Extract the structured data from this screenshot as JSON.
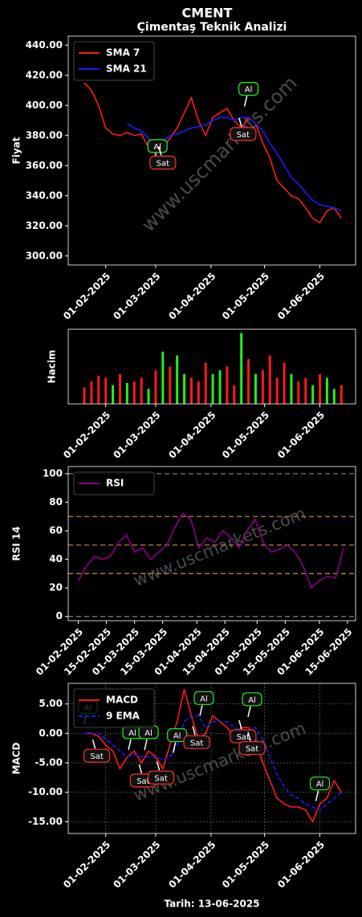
{
  "suptitle": "CMENT",
  "footer": "Tarih: 13-06-2025",
  "watermark": "www.uscmarkets.com",
  "chart_data": [
    {
      "type": "line",
      "title": "Çimentaş Teknik Analizi",
      "ylabel": "Fiyat",
      "legend": "upper left",
      "x": [
        "20-01-2025",
        "24-01-2025",
        "28-01-2025",
        "01-02-2025",
        "05-02-2025",
        "09-02-2025",
        "13-02-2025",
        "17-02-2025",
        "21-02-2025",
        "25-02-2025",
        "01-03-2025",
        "05-03-2025",
        "09-03-2025",
        "13-03-2025",
        "17-03-2025",
        "21-03-2025",
        "25-03-2025",
        "29-03-2025",
        "02-04-2025",
        "06-04-2025",
        "10-04-2025",
        "14-04-2025",
        "18-04-2025",
        "22-04-2025",
        "26-04-2025",
        "30-04-2025",
        "04-05-2025",
        "08-05-2025",
        "12-05-2025",
        "16-05-2025",
        "20-05-2025",
        "24-05-2025",
        "28-05-2025",
        "01-06-2025",
        "05-06-2025",
        "09-06-2025",
        "13-06-2025"
      ],
      "series": [
        {
          "name": "SMA 7",
          "color": "#ff1a1a",
          "values": [
            415,
            410,
            400,
            385,
            381,
            380,
            382,
            380,
            381,
            372,
            368,
            372,
            378,
            385,
            395,
            405,
            390,
            380,
            392,
            395,
            398,
            390,
            385,
            392,
            388,
            375,
            365,
            350,
            345,
            340,
            338,
            332,
            325,
            322,
            330,
            332,
            325
          ]
        },
        {
          "name": "SMA 21",
          "color": "#1a1aff",
          "values": [
            null,
            null,
            null,
            null,
            null,
            null,
            388,
            385,
            383,
            378,
            375,
            376,
            380,
            381,
            383,
            385,
            386,
            387,
            390,
            392,
            392,
            390,
            392,
            392,
            388,
            383,
            375,
            368,
            360,
            352,
            348,
            342,
            337,
            334,
            333,
            332,
            330
          ]
        }
      ],
      "xlim": [
        "11-01-2025",
        "21-06-2025"
      ],
      "xticks": [
        "01-02-2025",
        "01-03-2025",
        "01-04-2025",
        "01-05-2025",
        "01-06-2025"
      ],
      "ylim": [
        294,
        446
      ],
      "yticks": [
        {
          "value": 300,
          "label": "300.00"
        },
        {
          "value": 320,
          "label": "320.00"
        },
        {
          "value": 340,
          "label": "340.00"
        },
        {
          "value": 360,
          "label": "360.00"
        },
        {
          "value": 380,
          "label": "380.00"
        },
        {
          "value": 400,
          "label": "400.00"
        },
        {
          "value": 420,
          "label": "420.00"
        },
        {
          "value": 440,
          "label": "440.00"
        }
      ],
      "annotations": [
        {
          "text": "Al",
          "x": "02-03-2025",
          "y": 373,
          "color": "#22ee22"
        },
        {
          "text": "Sat",
          "x": "05-03-2025",
          "y": 362,
          "color": "#ff3030"
        },
        {
          "text": "Sat",
          "x": "19-04-2025",
          "y": 381,
          "color": "#ff3030"
        },
        {
          "text": "Al",
          "x": "22-04-2025",
          "y": 411,
          "color": "#22ee22"
        }
      ]
    },
    {
      "type": "bar",
      "ylabel": "Hacim",
      "x": [
        "20-01-2025",
        "24-01-2025",
        "28-01-2025",
        "01-02-2025",
        "05-02-2025",
        "09-02-2025",
        "13-02-2025",
        "17-02-2025",
        "21-02-2025",
        "25-02-2025",
        "01-03-2025",
        "05-03-2025",
        "09-03-2025",
        "13-03-2025",
        "17-03-2025",
        "21-03-2025",
        "25-03-2025",
        "29-03-2025",
        "02-04-2025",
        "06-04-2025",
        "10-04-2025",
        "14-04-2025",
        "18-04-2025",
        "22-04-2025",
        "26-04-2025",
        "30-04-2025",
        "04-05-2025",
        "08-05-2025",
        "12-05-2025",
        "16-05-2025",
        "20-05-2025",
        "24-05-2025",
        "28-05-2025",
        "01-06-2025",
        "05-06-2025",
        "09-06-2025",
        "13-06-2025"
      ],
      "values": [
        22,
        30,
        38,
        35,
        25,
        40,
        28,
        30,
        35,
        20,
        45,
        70,
        50,
        65,
        40,
        35,
        30,
        55,
        40,
        45,
        50,
        25,
        95,
        60,
        40,
        45,
        65,
        35,
        55,
        40,
        30,
        35,
        25,
        40,
        35,
        20,
        25
      ],
      "colors": [
        "#ff1a1a",
        "#ff1a1a",
        "#ff1a1a",
        "#ff1a1a",
        "#22ee22",
        "#ff1a1a",
        "#22ee22",
        "#ff1a1a",
        "#ff1a1a",
        "#22ee22",
        "#ff1a1a",
        "#22ee22",
        "#ff1a1a",
        "#22ee22",
        "#22ee22",
        "#ff1a1a",
        "#ff1a1a",
        "#ff1a1a",
        "#22ee22",
        "#22ee22",
        "#ff1a1a",
        "#ff1a1a",
        "#22ee22",
        "#ff1a1a",
        "#22ee22",
        "#ff1a1a",
        "#ff1a1a",
        "#ff1a1a",
        "#ff1a1a",
        "#22ee22",
        "#ff1a1a",
        "#ff1a1a",
        "#22ee22",
        "#ff1a1a",
        "#22ee22",
        "#22ee22",
        "#ff1a1a"
      ],
      "xlim": [
        "11-01-2025",
        "21-06-2025"
      ],
      "xticks": [
        "01-02-2025",
        "01-03-2025",
        "01-04-2025",
        "01-05-2025",
        "01-06-2025"
      ],
      "ylim": [
        0,
        100
      ]
    },
    {
      "type": "line",
      "ylabel": "RSI 14",
      "legend": "upper left",
      "x": [
        "20-01-2025",
        "24-01-2025",
        "28-01-2025",
        "01-02-2025",
        "05-02-2025",
        "09-02-2025",
        "13-02-2025",
        "17-02-2025",
        "21-02-2025",
        "25-02-2025",
        "01-03-2025",
        "05-03-2025",
        "09-03-2025",
        "13-03-2025",
        "17-03-2025",
        "21-03-2025",
        "25-03-2025",
        "29-03-2025",
        "02-04-2025",
        "06-04-2025",
        "10-04-2025",
        "14-04-2025",
        "18-04-2025",
        "22-04-2025",
        "26-04-2025",
        "30-04-2025",
        "04-05-2025",
        "08-05-2025",
        "12-05-2025",
        "16-05-2025",
        "20-05-2025",
        "24-05-2025",
        "28-05-2025",
        "01-06-2025",
        "05-06-2025",
        "09-06-2025",
        "13-06-2025"
      ],
      "series": [
        {
          "name": "RSI",
          "color": "#8a008a",
          "values": [
            null,
            null,
            null,
            25,
            35,
            42,
            40,
            42,
            52,
            57,
            45,
            48,
            40,
            45,
            50,
            62,
            72,
            68,
            48,
            55,
            52,
            60,
            55,
            48,
            60,
            68,
            52,
            45,
            47,
            50,
            45,
            35,
            20,
            25,
            28,
            27,
            48
          ]
        }
      ],
      "hlines": [
        {
          "value": 0,
          "color": "#777777"
        },
        {
          "value": 30,
          "color": "#c08040"
        },
        {
          "value": 50,
          "color": "#c08040"
        },
        {
          "value": 70,
          "color": "#c08040"
        },
        {
          "value": 100,
          "color": "#777777"
        }
      ],
      "xlim": [
        "27-01-2025",
        "19-06-2025"
      ],
      "xticks": [
        "01-02-2025",
        "15-02-2025",
        "01-03-2025",
        "15-03-2025",
        "01-04-2025",
        "15-04-2025",
        "01-05-2025",
        "15-05-2025",
        "01-06-2025",
        "15-06-2025"
      ],
      "ylim": [
        -3,
        105
      ],
      "yticks": [
        0,
        20,
        40,
        60,
        80,
        100
      ]
    },
    {
      "type": "line",
      "ylabel": "MACD",
      "legend": "upper left",
      "grid": true,
      "x": [
        "20-01-2025",
        "24-01-2025",
        "28-01-2025",
        "01-02-2025",
        "05-02-2025",
        "09-02-2025",
        "13-02-2025",
        "17-02-2025",
        "21-02-2025",
        "25-02-2025",
        "01-03-2025",
        "05-03-2025",
        "09-03-2025",
        "13-03-2025",
        "17-03-2025",
        "21-03-2025",
        "25-03-2025",
        "29-03-2025",
        "02-04-2025",
        "06-04-2025",
        "10-04-2025",
        "14-04-2025",
        "18-04-2025",
        "22-04-2025",
        "26-04-2025",
        "30-04-2025",
        "04-05-2025",
        "08-05-2025",
        "12-05-2025",
        "16-05-2025",
        "20-05-2025",
        "24-05-2025",
        "28-05-2025",
        "01-06-2025",
        "05-06-2025",
        "09-06-2025",
        "13-06-2025"
      ],
      "series": [
        {
          "name": "MACD",
          "color": "#ff1a1a",
          "values": [
            0,
            0,
            -0.5,
            -2,
            -3,
            -6,
            -4,
            -3,
            -5,
            -3,
            -4,
            -6,
            -2,
            2,
            7.5,
            3,
            -1,
            0,
            3,
            2,
            1,
            -0.5,
            1,
            1,
            -1,
            -5,
            -8,
            -11,
            -12,
            -12.5,
            -12.5,
            -13,
            -15,
            -12,
            -11,
            -8,
            -10
          ]
        },
        {
          "name": "9 EMA",
          "color": "#1a1aff",
          "dashed": true,
          "values": [
            0,
            0,
            0,
            -1,
            -2,
            -3,
            -4,
            -3.5,
            -4,
            -4,
            -4,
            -4.5,
            -4,
            -2,
            2,
            3,
            3,
            1,
            2,
            2,
            2,
            1,
            0.5,
            0.5,
            1,
            -1,
            -4,
            -7,
            -9,
            -10.5,
            -11,
            -12,
            -12.5,
            -13,
            -12,
            -11,
            -10
          ]
        }
      ],
      "xlim": [
        "11-01-2025",
        "21-06-2025"
      ],
      "xticks": [
        "01-02-2025",
        "01-03-2025",
        "01-04-2025",
        "01-05-2025",
        "01-06-2025"
      ],
      "ylim": [
        -17,
        8.5
      ],
      "yticks": [
        {
          "value": -15,
          "label": "-15.00"
        },
        {
          "value": -10,
          "label": "-10.00"
        },
        {
          "value": -5,
          "label": "-5.00"
        },
        {
          "value": 0,
          "label": "0.00"
        },
        {
          "value": 5,
          "label": "5.00"
        }
      ],
      "annotations": [
        {
          "text": "Al",
          "x": "22-01-2025",
          "y": 4.5,
          "color": "#22ee22"
        },
        {
          "text": "Sat",
          "x": "27-01-2025",
          "y": -3.8,
          "color": "#ff3030"
        },
        {
          "text": "Al",
          "x": "16-02-2025",
          "y": 0.2,
          "color": "#22ee22"
        },
        {
          "text": "Sat",
          "x": "22-02-2025",
          "y": -8,
          "color": "#ff3030"
        },
        {
          "text": "Al",
          "x": "25-02-2025",
          "y": 0.2,
          "color": "#22ee22"
        },
        {
          "text": "Sat",
          "x": "04-03-2025",
          "y": -7.5,
          "color": "#ff3030"
        },
        {
          "text": "Al",
          "x": "13-03-2025",
          "y": -0.3,
          "color": "#22ee22"
        },
        {
          "text": "Sat",
          "x": "24-03-2025",
          "y": -1.5,
          "color": "#ff3030"
        },
        {
          "text": "Al",
          "x": "28-03-2025",
          "y": 6,
          "color": "#22ee22"
        },
        {
          "text": "Sat",
          "x": "19-04-2025",
          "y": -0.5,
          "color": "#ff3030"
        },
        {
          "text": "Sat",
          "x": "24-04-2025",
          "y": -2.5,
          "color": "#ff3030"
        },
        {
          "text": "Al",
          "x": "24-04-2025",
          "y": 5.8,
          "color": "#22ee22"
        },
        {
          "text": "Al",
          "x": "01-06-2025",
          "y": -8.5,
          "color": "#22ee22"
        }
      ]
    }
  ]
}
